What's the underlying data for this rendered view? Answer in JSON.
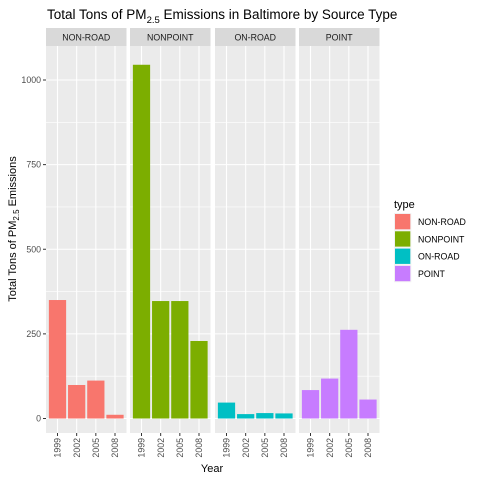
{
  "chart_data": {
    "type": "bar",
    "title": {
      "prefix": "Total Tons of PM",
      "subscript": "2.5",
      "suffix": " Emissions in Baltimore by Source Type"
    },
    "xlabel": "Year",
    "ylabel": {
      "prefix": "Total Tons of PM",
      "subscript": "2.5",
      "suffix": " Emissions"
    },
    "ylim": [
      0,
      1100
    ],
    "yticks": [
      0,
      250,
      500,
      750,
      1000
    ],
    "categories": [
      "1999",
      "2002",
      "2005",
      "2008"
    ],
    "grid": true,
    "legend": {
      "title": "type",
      "placement": "right"
    },
    "facets": [
      {
        "name": "NON-ROAD",
        "color": "#F8766D",
        "values": [
          350,
          99,
          112,
          11
        ]
      },
      {
        "name": "NONPOINT",
        "color": "#7CAE00",
        "values": [
          1045,
          347,
          347,
          229
        ]
      },
      {
        "name": "ON-ROAD",
        "color": "#00BFC4",
        "values": [
          47,
          13,
          16,
          15
        ]
      },
      {
        "name": "POINT",
        "color": "#C77CFF",
        "values": [
          84,
          118,
          262,
          56
        ]
      }
    ]
  }
}
